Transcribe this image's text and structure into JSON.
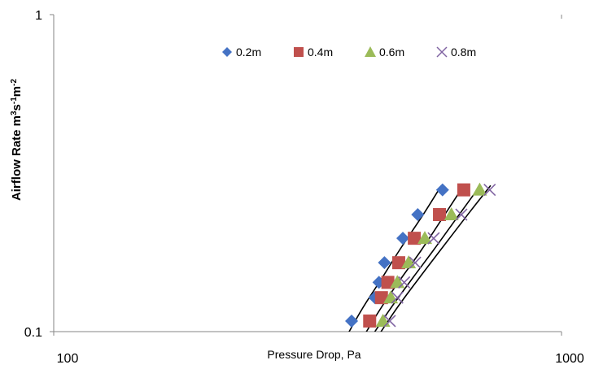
{
  "chart_data": {
    "type": "scatter",
    "title": "",
    "xlabel": "Pressure Drop, Pa",
    "ylabel": {
      "base": "Airflow Rate m",
      "sup1": "3",
      "mid1": "s",
      "sup2": "-1",
      "mid2": "m",
      "sup3": "-2"
    },
    "x_scale": "log",
    "y_scale": "log",
    "xlim": [
      100,
      1000
    ],
    "ylim": [
      0.1,
      1
    ],
    "x_tick_labels": [
      "100",
      "1000"
    ],
    "y_tick_labels": [
      "0.1",
      "1"
    ],
    "grid": false,
    "legend_position": "top-right",
    "series": [
      {
        "name": "0.2m",
        "marker": "diamond",
        "color": "#4472C4",
        "x": [
          386,
          429,
          437,
          448,
          487,
          521,
          583
        ],
        "y": [
          0.108,
          0.128,
          0.143,
          0.165,
          0.197,
          0.234,
          0.28
        ]
      },
      {
        "name": "0.4m",
        "marker": "square",
        "color": "#C0504D",
        "x": [
          419,
          442,
          455,
          478,
          513,
          575,
          642
        ],
        "y": [
          0.108,
          0.128,
          0.143,
          0.165,
          0.197,
          0.234,
          0.28
        ]
      },
      {
        "name": "0.6m",
        "marker": "triangle",
        "color": "#9BBB59",
        "x": [
          445,
          461,
          475,
          500,
          538,
          607,
          690
        ],
        "y": [
          0.108,
          0.128,
          0.143,
          0.165,
          0.197,
          0.234,
          0.28
        ]
      },
      {
        "name": "0.8m",
        "marker": "x",
        "color": "#8064A2",
        "x": [
          459,
          475,
          490,
          515,
          560,
          635,
          722
        ],
        "y": [
          0.108,
          0.128,
          0.143,
          0.165,
          0.197,
          0.234,
          0.28
        ]
      }
    ],
    "trendlines": [
      {
        "color": "#000000",
        "x": [
          375,
          405,
          440,
          480,
          535,
          580
        ],
        "y": [
          0.095,
          0.118,
          0.145,
          0.181,
          0.235,
          0.289
        ]
      },
      {
        "color": "#000000",
        "x": [
          405,
          440,
          480,
          530,
          590,
          642
        ],
        "y": [
          0.095,
          0.118,
          0.145,
          0.181,
          0.235,
          0.289
        ]
      },
      {
        "color": "#000000",
        "x": [
          420,
          460,
          505,
          560,
          630,
          692
        ],
        "y": [
          0.095,
          0.118,
          0.145,
          0.181,
          0.235,
          0.289
        ]
      },
      {
        "color": "#000000",
        "x": [
          432,
          473,
          520,
          578,
          655,
          725
        ],
        "y": [
          0.095,
          0.118,
          0.145,
          0.181,
          0.235,
          0.289
        ]
      }
    ]
  }
}
